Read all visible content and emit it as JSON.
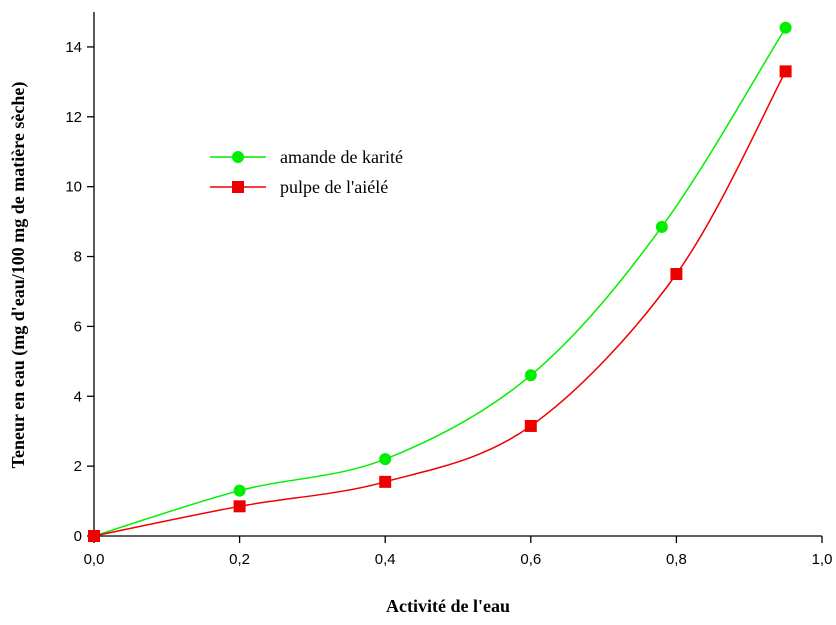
{
  "chart_data": {
    "type": "line",
    "xlabel": "Activité de l'eau",
    "ylabel": "Teneur en eau (mg d'eau/100 mg de matière sèche)",
    "xlim": [
      0,
      1
    ],
    "ylim": [
      0,
      15
    ],
    "x_ticks": [
      0,
      0.2,
      0.4,
      0.6,
      0.8,
      1.0
    ],
    "x_tick_labels": [
      "0,0",
      "0,2",
      "0,4",
      "0,6",
      "0,8",
      "1,0"
    ],
    "y_ticks": [
      0,
      2,
      4,
      6,
      8,
      10,
      12,
      14
    ],
    "y_tick_labels": [
      "0",
      "2",
      "4",
      "6",
      "8",
      "10",
      "12",
      "14"
    ],
    "grid": false,
    "legend_position": "upper-left",
    "series": [
      {
        "name": "amande de karité",
        "color": "#00ee00",
        "marker": "circle",
        "x": [
          0,
          0.2,
          0.4,
          0.6,
          0.78,
          0.95
        ],
        "y": [
          0,
          1.3,
          2.2,
          4.6,
          8.85,
          14.55
        ]
      },
      {
        "name": "pulpe de l'aiélé",
        "color": "#ee0000",
        "marker": "square",
        "x": [
          0,
          0.2,
          0.4,
          0.6,
          0.8,
          0.95
        ],
        "y": [
          0,
          0.85,
          1.55,
          3.15,
          7.5,
          13.3
        ]
      }
    ]
  }
}
